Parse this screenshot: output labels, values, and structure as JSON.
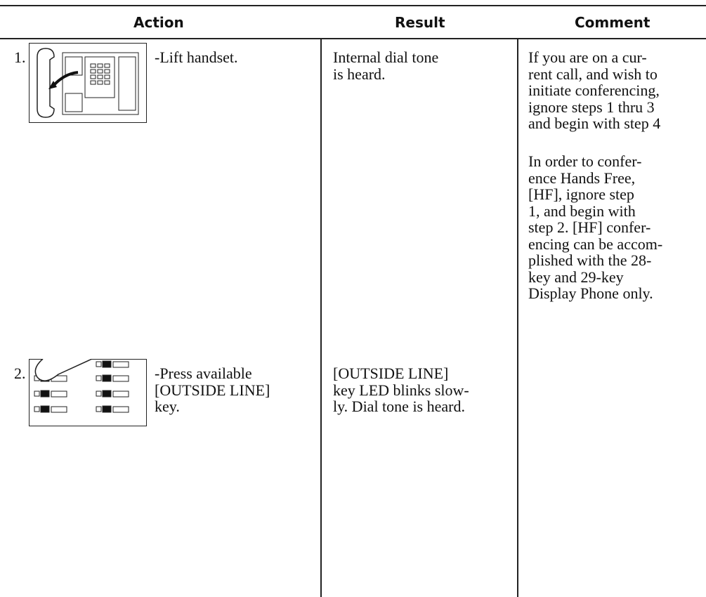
{
  "header": {
    "action": "Action",
    "result": "Result",
    "comment": "Comment"
  },
  "steps": [
    {
      "number": "1.",
      "action": [
        "-Lift handset."
      ],
      "result": [
        "Internal dial tone",
        "is heard."
      ]
    },
    {
      "number": "2.",
      "action": [
        "-Press available",
        "[OUTSIDE LINE]",
        "key."
      ],
      "result": [
        "[OUTSIDE LINE]",
        "key LED blinks slow-",
        "ly. Dial tone is heard."
      ]
    }
  ],
  "comment": {
    "paragraphs": [
      [
        "If you are on a cur-",
        "rent call, and wish to",
        "initiate conferencing,",
        "ignore steps 1 thru 3",
        "and begin with step 4"
      ],
      [
        "In order to confer-",
        "ence Hands Free,",
        "[HF], ignore step",
        "1, and begin with",
        "step 2.  [HF] confer-",
        "encing can be accom-",
        "plished with the 28-",
        "key and 29-key",
        "Display Phone only."
      ]
    ]
  }
}
